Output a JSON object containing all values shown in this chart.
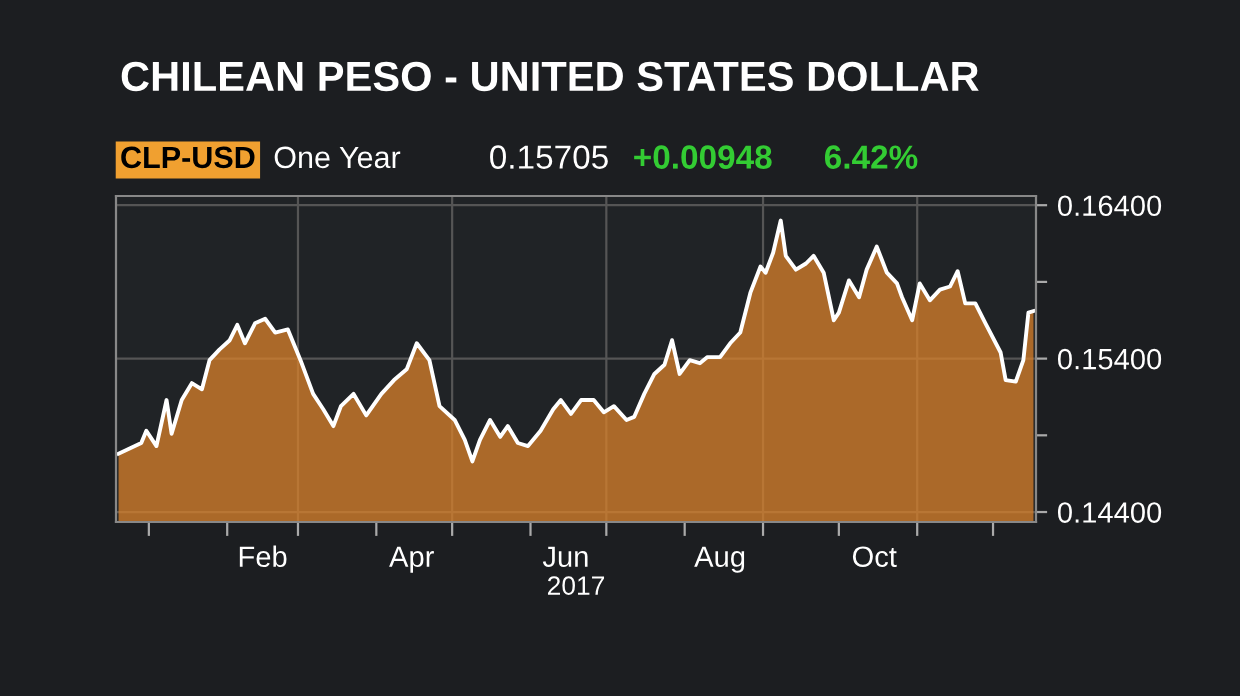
{
  "chart_data": {
    "type": "area",
    "title": "CHILEAN PESO - UNITED STATES DOLLAR",
    "annotations": [
      "CLP-USD",
      "One Year",
      "0.15705",
      "+0.00948",
      "6.42%"
    ],
    "xlabel": "2017",
    "x": [
      "2016-12-20",
      "2016-12-29",
      "2016-12-31",
      "2017-01-04",
      "2017-01-08",
      "2017-01-10",
      "2017-01-14",
      "2017-01-18",
      "2017-01-22",
      "2017-01-25",
      "2017-01-29",
      "2017-02-02",
      "2017-02-05",
      "2017-02-08",
      "2017-02-12",
      "2017-02-16",
      "2017-02-20",
      "2017-02-25",
      "2017-03-02",
      "2017-03-07",
      "2017-03-11",
      "2017-03-15",
      "2017-03-18",
      "2017-03-23",
      "2017-03-28",
      "2017-04-03",
      "2017-04-08",
      "2017-04-13",
      "2017-04-17",
      "2017-04-22",
      "2017-04-26",
      "2017-05-02",
      "2017-05-06",
      "2017-05-09",
      "2017-05-12",
      "2017-05-16",
      "2017-05-20",
      "2017-05-23",
      "2017-05-27",
      "2017-05-31",
      "2017-06-05",
      "2017-06-10",
      "2017-06-13",
      "2017-06-17",
      "2017-06-21",
      "2017-06-26",
      "2017-06-30",
      "2017-07-04",
      "2017-07-09",
      "2017-07-12",
      "2017-07-16",
      "2017-07-20",
      "2017-07-24",
      "2017-07-27",
      "2017-07-30",
      "2017-08-03",
      "2017-08-07",
      "2017-08-10",
      "2017-08-15",
      "2017-08-19",
      "2017-08-23",
      "2017-08-27",
      "2017-08-31",
      "2017-09-02",
      "2017-09-05",
      "2017-09-08",
      "2017-09-10",
      "2017-09-14",
      "2017-09-18",
      "2017-09-21",
      "2017-09-25",
      "2017-09-29",
      "2017-10-01",
      "2017-10-05",
      "2017-10-09",
      "2017-10-12",
      "2017-10-16",
      "2017-10-20",
      "2017-10-24",
      "2017-10-26",
      "2017-10-30",
      "2017-11-02",
      "2017-11-06",
      "2017-11-10",
      "2017-11-14",
      "2017-11-17",
      "2017-11-20",
      "2017-11-24",
      "2017-11-28",
      "2017-12-04",
      "2017-12-06",
      "2017-12-10",
      "2017-12-13",
      "2017-12-15",
      "2017-12-17"
    ],
    "series": [
      {
        "color": "#d9822b",
        "values": [
          0.1478,
          0.1485,
          0.1493,
          0.1483,
          0.1513,
          0.1491,
          0.1513,
          0.1524,
          0.152,
          0.1539,
          0.1546,
          0.1552,
          0.1562,
          0.155,
          0.1563,
          0.1566,
          0.1557,
          0.1559,
          0.1539,
          0.1517,
          0.1507,
          0.1496,
          0.1509,
          0.1517,
          0.1503,
          0.1517,
          0.1526,
          0.1533,
          0.155,
          0.1539,
          0.1509,
          0.15,
          0.1487,
          0.1473,
          0.1487,
          0.15,
          0.1489,
          0.1496,
          0.1485,
          0.1483,
          0.1493,
          0.1507,
          0.1513,
          0.1504,
          0.1513,
          0.1513,
          0.1505,
          0.1509,
          0.15,
          0.1502,
          0.1517,
          0.153,
          0.1536,
          0.1552,
          0.153,
          0.1539,
          0.1537,
          0.1541,
          0.1541,
          0.155,
          0.1557,
          0.1583,
          0.16,
          0.1596,
          0.1609,
          0.163,
          0.1607,
          0.1598,
          0.1602,
          0.1607,
          0.1596,
          0.1565,
          0.157,
          0.1591,
          0.158,
          0.1598,
          0.1613,
          0.1596,
          0.1589,
          0.158,
          0.1565,
          0.1589,
          0.1578,
          0.1585,
          0.1587,
          0.1597,
          0.1576,
          0.1576,
          0.1563,
          0.1544,
          0.1526,
          0.1525,
          0.1539,
          0.157,
          0.1571
        ]
      }
    ],
    "xlim": [
      "2016-12-19",
      "2017-12-18"
    ],
    "xticks": [
      {
        "value": "2017-01-01",
        "label": null
      },
      {
        "value": "2017-02-01",
        "label": null
      },
      {
        "value": "2017-02-15",
        "label": "Feb"
      },
      {
        "value": "2017-03-01",
        "label": null
      },
      {
        "value": "2017-04-01",
        "label": null
      },
      {
        "value": "2017-04-15",
        "label": "Apr"
      },
      {
        "value": "2017-05-01",
        "label": null
      },
      {
        "value": "2017-06-01",
        "label": null
      },
      {
        "value": "2017-06-15",
        "label": "Jun"
      },
      {
        "value": "2017-07-01",
        "label": null
      },
      {
        "value": "2017-08-01",
        "label": null
      },
      {
        "value": "2017-08-15",
        "label": "Aug"
      },
      {
        "value": "2017-09-01",
        "label": null
      },
      {
        "value": "2017-10-01",
        "label": null
      },
      {
        "value": "2017-10-15",
        "label": "Oct"
      },
      {
        "value": "2017-11-01",
        "label": null
      },
      {
        "value": "2017-12-01",
        "label": null
      }
    ],
    "ylim": [
      0.14335,
      0.1646
    ],
    "yticks": [
      {
        "value": 0.144,
        "label": "0.14400"
      },
      {
        "value": 0.149,
        "label": null
      },
      {
        "value": 0.154,
        "label": "0.15400"
      },
      {
        "value": 0.159,
        "label": null
      },
      {
        "value": 0.164,
        "label": "0.16400"
      }
    ],
    "grid": true
  }
}
